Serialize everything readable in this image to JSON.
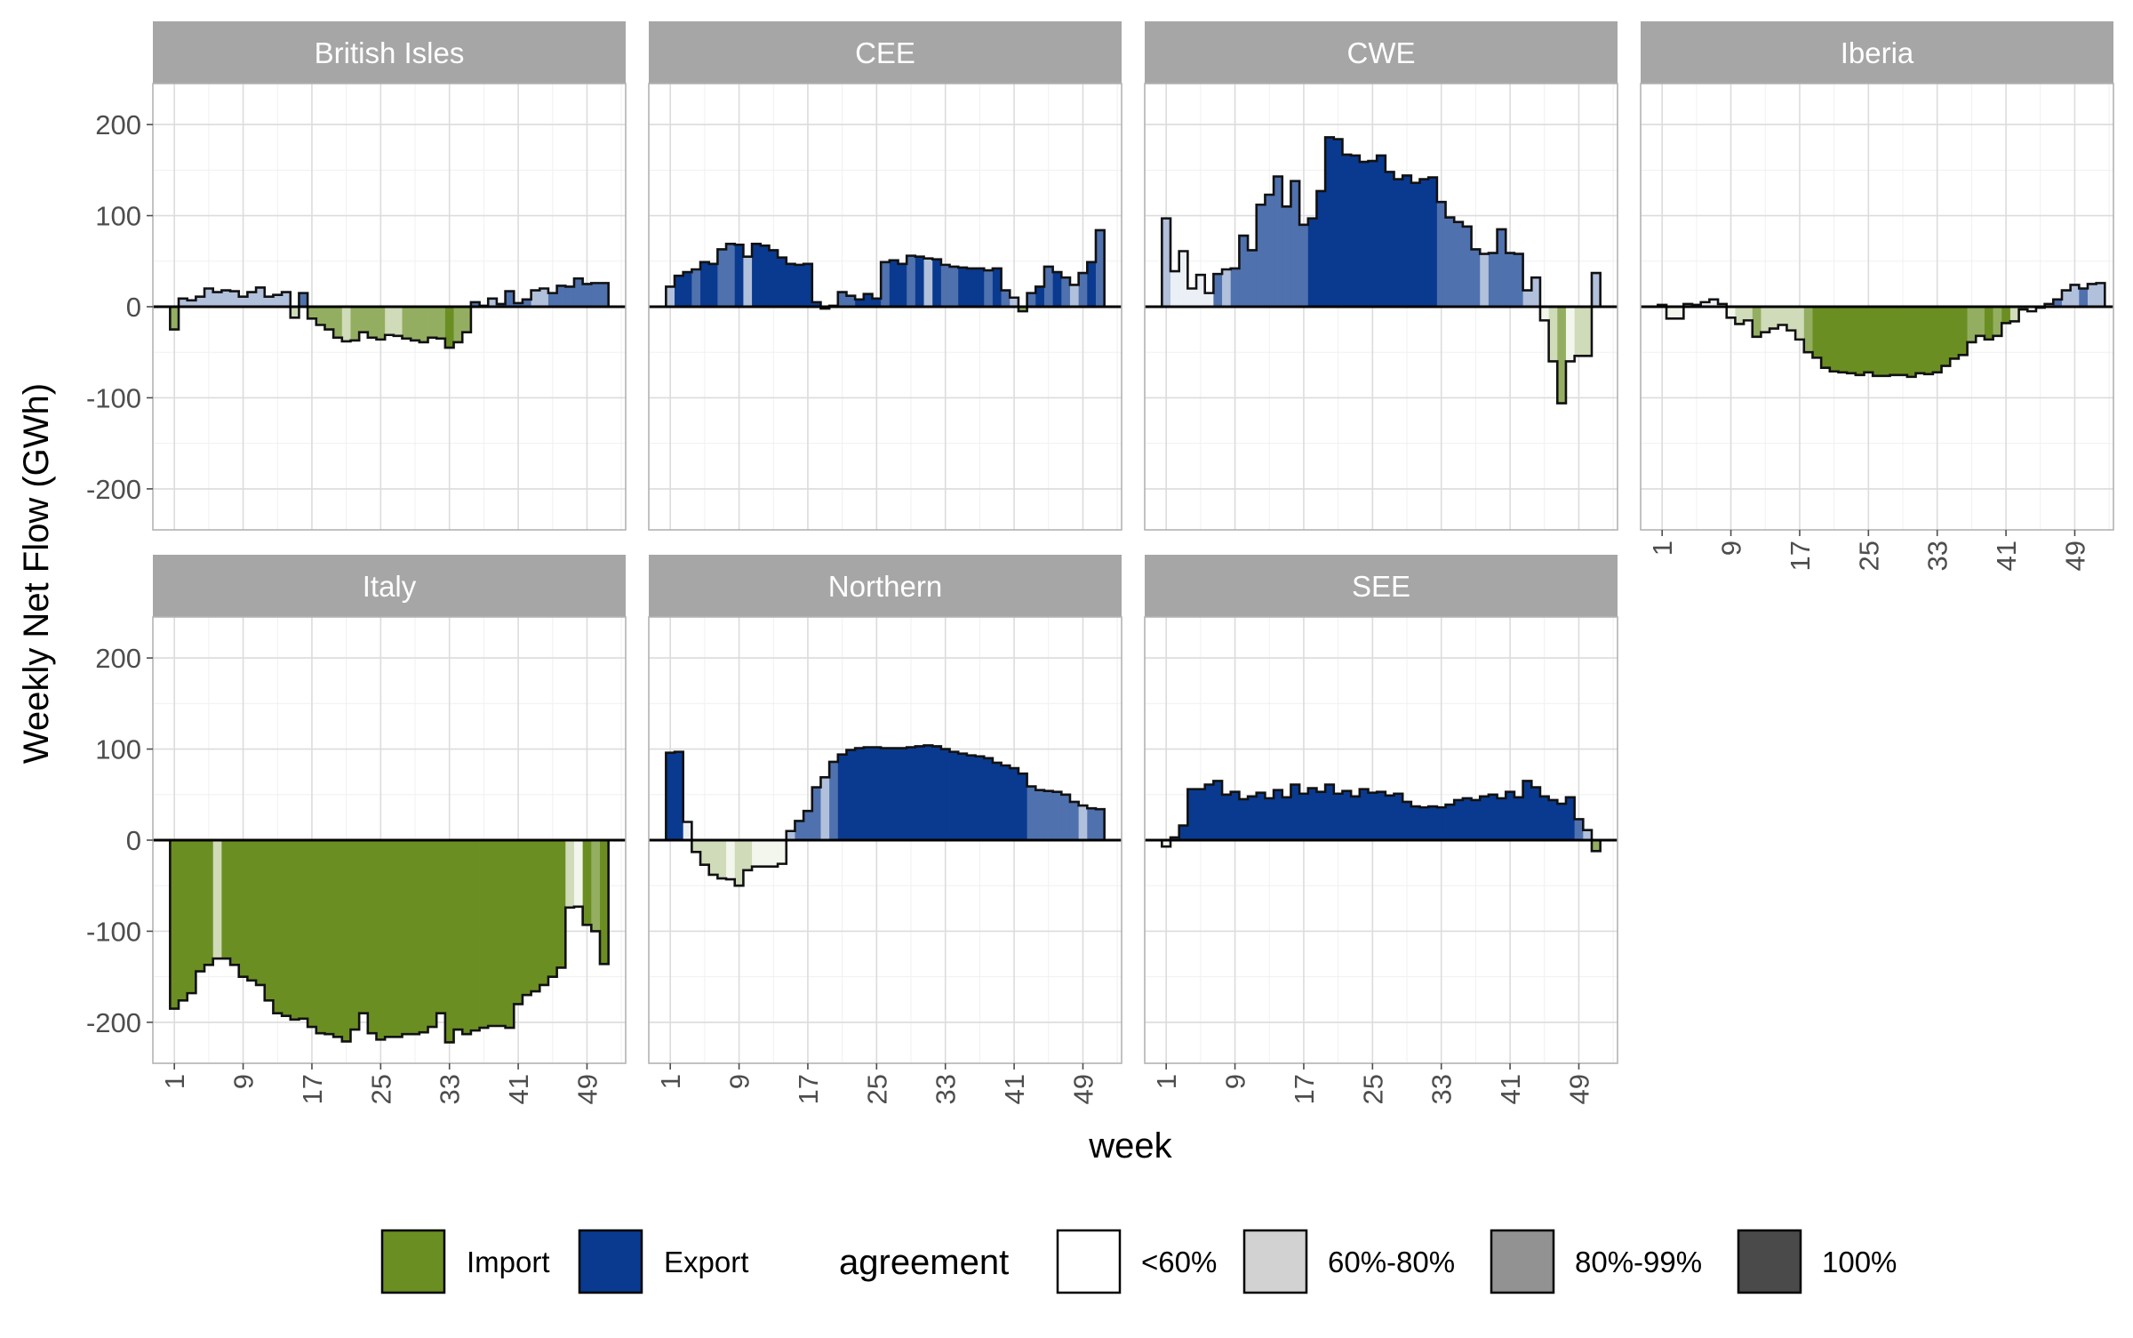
{
  "chart_data": {
    "type": "bar",
    "subtype": "faceted step-bar chart (columns per week, filled by direction and shaded by agreement level)",
    "title": "",
    "xlabel": "week",
    "ylabel": "Weekly Net Flow (GWh)",
    "ylim": [
      -245,
      245
    ],
    "xlim": [
      -1.5,
      53.5
    ],
    "x_ticks": [
      1,
      9,
      17,
      25,
      33,
      41,
      49
    ],
    "y_ticks": [
      200,
      100,
      0,
      -100,
      -200
    ],
    "y_tick_labels": [
      "200",
      "100",
      "0",
      "-100",
      "-200"
    ],
    "grid": true,
    "legend_position": "bottom",
    "direction_legend": [
      {
        "label": "Import",
        "color": "#6b8e23"
      },
      {
        "label": "Export",
        "color": "#0a3a8f"
      }
    ],
    "agreement_legend": {
      "title": "agreement",
      "levels": [
        {
          "label": "<60%",
          "alpha": 0.0
        },
        {
          "label": "60%-80%",
          "alpha": 0.25
        },
        {
          "label": "80%-99%",
          "alpha": 0.6
        },
        {
          "label": "100%",
          "alpha": 1.0
        }
      ]
    },
    "panel_order": [
      "British Isles",
      "CEE",
      "CWE",
      "Iberia",
      "Italy",
      "Northern",
      "SEE"
    ],
    "panels": [
      {
        "name": "British Isles",
        "values": [
          -25,
          9,
          7,
          11,
          20,
          16,
          18,
          17,
          11,
          16,
          21,
          11,
          13,
          16,
          -12,
          15,
          -13,
          -20,
          -25,
          -34,
          -38,
          -37,
          -28,
          -34,
          -36,
          -31,
          -32,
          -35,
          -37,
          -39,
          -34,
          -35,
          -45,
          -39,
          -28,
          5,
          1,
          9,
          3,
          17,
          4,
          8,
          18,
          20,
          15,
          23,
          22,
          31,
          25,
          26,
          26
        ],
        "agreement": [
          3,
          2,
          2,
          2,
          2,
          2,
          2,
          2,
          2,
          2,
          2,
          2,
          2,
          2,
          2,
          3,
          3,
          3,
          3,
          3,
          2,
          3,
          3,
          3,
          3,
          2,
          2,
          3,
          3,
          3,
          3,
          3,
          4,
          3,
          3,
          3,
          3,
          2,
          3,
          3,
          3,
          3,
          2,
          2,
          3,
          3,
          3,
          3,
          3,
          3,
          3
        ]
      },
      {
        "name": "CEE",
        "values": [
          22,
          34,
          38,
          41,
          49,
          47,
          63,
          69,
          68,
          55,
          69,
          67,
          62,
          54,
          47,
          46,
          47,
          5,
          -2,
          1,
          16,
          12,
          8,
          14,
          9,
          49,
          51,
          47,
          56,
          55,
          53,
          52,
          46,
          44,
          43,
          42,
          42,
          40,
          42,
          18,
          10,
          -5,
          15,
          22,
          44,
          38,
          32,
          24,
          37,
          49,
          84
        ],
        "agreement": [
          2,
          4,
          4,
          3,
          4,
          4,
          3,
          3,
          4,
          2,
          4,
          4,
          4,
          4,
          4,
          4,
          4,
          4,
          4,
          4,
          3,
          3,
          4,
          4,
          4,
          3,
          4,
          4,
          3,
          4,
          2,
          4,
          3,
          3,
          4,
          4,
          4,
          3,
          4,
          3,
          2,
          3,
          3,
          4,
          3,
          4,
          3,
          2,
          3,
          4,
          3
        ]
      },
      {
        "name": "CWE",
        "values": [
          97,
          39,
          61,
          20,
          35,
          15,
          36,
          41,
          42,
          78,
          62,
          112,
          123,
          143,
          110,
          138,
          90,
          97,
          127,
          186,
          184,
          167,
          166,
          159,
          160,
          166,
          148,
          140,
          144,
          136,
          140,
          142,
          115,
          98,
          93,
          88,
          63,
          58,
          59,
          85,
          59,
          58,
          18,
          32,
          -15,
          -60,
          -106,
          -60,
          -54,
          -54,
          37
        ],
        "agreement": [
          2,
          1,
          1,
          1,
          1,
          1,
          3,
          2,
          3,
          3,
          3,
          3,
          3,
          3,
          3,
          3,
          3,
          4,
          4,
          4,
          4,
          4,
          4,
          4,
          4,
          4,
          4,
          4,
          4,
          4,
          4,
          4,
          3,
          3,
          3,
          3,
          3,
          2,
          3,
          3,
          3,
          3,
          2,
          2,
          1,
          2,
          3,
          1,
          2,
          2,
          2
        ]
      },
      {
        "name": "Iberia",
        "values": [
          2,
          -13,
          -13,
          3,
          2,
          5,
          8,
          3,
          -12,
          -19,
          -15,
          -33,
          -28,
          -24,
          -20,
          -26,
          -36,
          -50,
          -56,
          -67,
          -71,
          -72,
          -73,
          -75,
          -72,
          -76,
          -76,
          -75,
          -75,
          -77,
          -73,
          -74,
          -72,
          -65,
          -57,
          -53,
          -39,
          -32,
          -36,
          -32,
          -18,
          -16,
          -3,
          -5,
          -1,
          3,
          8,
          18,
          24,
          20,
          25,
          26
        ],
        "agreement": [
          1,
          1,
          1,
          1,
          1,
          1,
          1,
          1,
          1,
          2,
          2,
          3,
          2,
          2,
          2,
          2,
          2,
          3,
          4,
          4,
          4,
          4,
          4,
          4,
          4,
          4,
          4,
          4,
          4,
          4,
          4,
          4,
          4,
          4,
          4,
          4,
          3,
          3,
          4,
          3,
          4,
          2,
          3,
          1,
          1,
          1,
          3,
          2,
          2,
          3,
          2,
          2
        ]
      },
      {
        "name": "Italy",
        "values": [
          -185,
          -176,
          -168,
          -144,
          -137,
          -130,
          -130,
          -137,
          -150,
          -154,
          -159,
          -176,
          -190,
          -193,
          -197,
          -196,
          -205,
          -212,
          -213,
          -216,
          -221,
          -208,
          -190,
          -212,
          -219,
          -216,
          -216,
          -213,
          -213,
          -211,
          -205,
          -190,
          -222,
          -208,
          -213,
          -209,
          -206,
          -204,
          -204,
          -206,
          -180,
          -170,
          -166,
          -159,
          -150,
          -140,
          -74,
          -73,
          -93,
          -100,
          -136
        ],
        "agreement": [
          4,
          4,
          4,
          4,
          4,
          2,
          4,
          4,
          4,
          4,
          4,
          4,
          4,
          4,
          4,
          4,
          4,
          4,
          4,
          4,
          4,
          4,
          4,
          4,
          4,
          4,
          4,
          4,
          4,
          4,
          4,
          4,
          4,
          4,
          4,
          4,
          4,
          4,
          4,
          4,
          4,
          4,
          4,
          4,
          4,
          4,
          2,
          1,
          4,
          3,
          4
        ]
      },
      {
        "name": "Northern",
        "values": [
          96,
          97,
          20,
          -13,
          -27,
          -38,
          -42,
          -43,
          -50,
          -33,
          -29,
          -29,
          -29,
          -26,
          10,
          21,
          32,
          58,
          69,
          86,
          94,
          99,
          101,
          102,
          102,
          101,
          101,
          101,
          102,
          103,
          104,
          103,
          100,
          97,
          95,
          93,
          92,
          90,
          85,
          82,
          79,
          73,
          59,
          55,
          54,
          53,
          50,
          42,
          38,
          35,
          34
        ],
        "agreement": [
          4,
          4,
          1,
          2,
          2,
          2,
          2,
          1,
          2,
          2,
          1,
          1,
          1,
          1,
          2,
          3,
          3,
          3,
          2,
          3,
          4,
          4,
          4,
          4,
          4,
          4,
          4,
          4,
          4,
          4,
          4,
          4,
          4,
          4,
          4,
          4,
          4,
          4,
          4,
          4,
          4,
          4,
          3,
          3,
          3,
          3,
          3,
          3,
          2,
          3,
          3
        ]
      },
      {
        "name": "SEE",
        "values": [
          -7,
          3,
          16,
          56,
          56,
          61,
          65,
          50,
          53,
          45,
          48,
          52,
          46,
          55,
          47,
          61,
          51,
          57,
          53,
          61,
          51,
          54,
          48,
          56,
          52,
          53,
          49,
          51,
          42,
          37,
          36,
          37,
          36,
          39,
          44,
          46,
          44,
          48,
          50,
          46,
          53,
          47,
          65,
          58,
          48,
          44,
          40,
          47,
          23,
          11,
          -12
        ],
        "agreement": [
          1,
          3,
          4,
          4,
          4,
          4,
          4,
          4,
          4,
          4,
          4,
          4,
          4,
          4,
          4,
          4,
          4,
          4,
          4,
          4,
          4,
          4,
          4,
          4,
          4,
          4,
          4,
          4,
          4,
          4,
          4,
          4,
          4,
          4,
          4,
          4,
          4,
          4,
          4,
          4,
          4,
          4,
          4,
          4,
          4,
          4,
          4,
          4,
          3,
          2,
          3
        ]
      }
    ]
  }
}
